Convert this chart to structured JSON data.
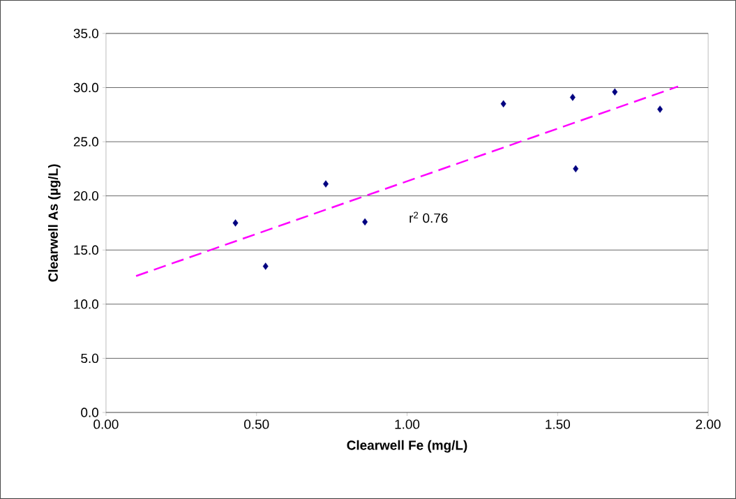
{
  "chart_data": {
    "type": "scatter",
    "xlabel": "Clearwell Fe (mg/L)",
    "ylabel": "Clearwell As (µg/L)",
    "series": [
      {
        "color": "#000080",
        "marker": "diamond",
        "x": [
          0.43,
          0.53,
          0.73,
          0.86,
          1.32,
          1.55,
          1.56,
          1.69,
          1.84
        ],
        "values": [
          17.5,
          13.5,
          21.1,
          17.6,
          28.5,
          29.1,
          22.5,
          29.6,
          28.0
        ]
      },
      {
        "type": "line",
        "color": "#ff00ff",
        "line_style": "dashed",
        "x": [
          0.1,
          1.9
        ],
        "values": [
          12.6,
          30.1
        ]
      }
    ],
    "annotations": [
      "r$^{2}$ 0.76"
    ],
    "xlim": [
      0.0,
      2.0
    ],
    "ylim": [
      0.0,
      35.0
    ],
    "xticks": [
      {
        "value": 0,
        "label": "0.00"
      },
      {
        "value": 0.5,
        "label": "0.50"
      },
      {
        "value": 1,
        "label": "1.00"
      },
      {
        "value": 1.5,
        "label": "1.50"
      },
      {
        "value": 2,
        "label": "2.00"
      }
    ],
    "yticks": [
      {
        "value": 0,
        "label": "0.0"
      },
      {
        "value": 5,
        "label": "5.0"
      },
      {
        "value": 10,
        "label": "10.0"
      },
      {
        "value": 15,
        "label": "15.0"
      },
      {
        "value": 20,
        "label": "20.0"
      },
      {
        "value": 25,
        "label": "25.0"
      },
      {
        "value": 30,
        "label": "30.0"
      },
      {
        "value": 35,
        "label": "35.0"
      }
    ],
    "grid": "y"
  }
}
